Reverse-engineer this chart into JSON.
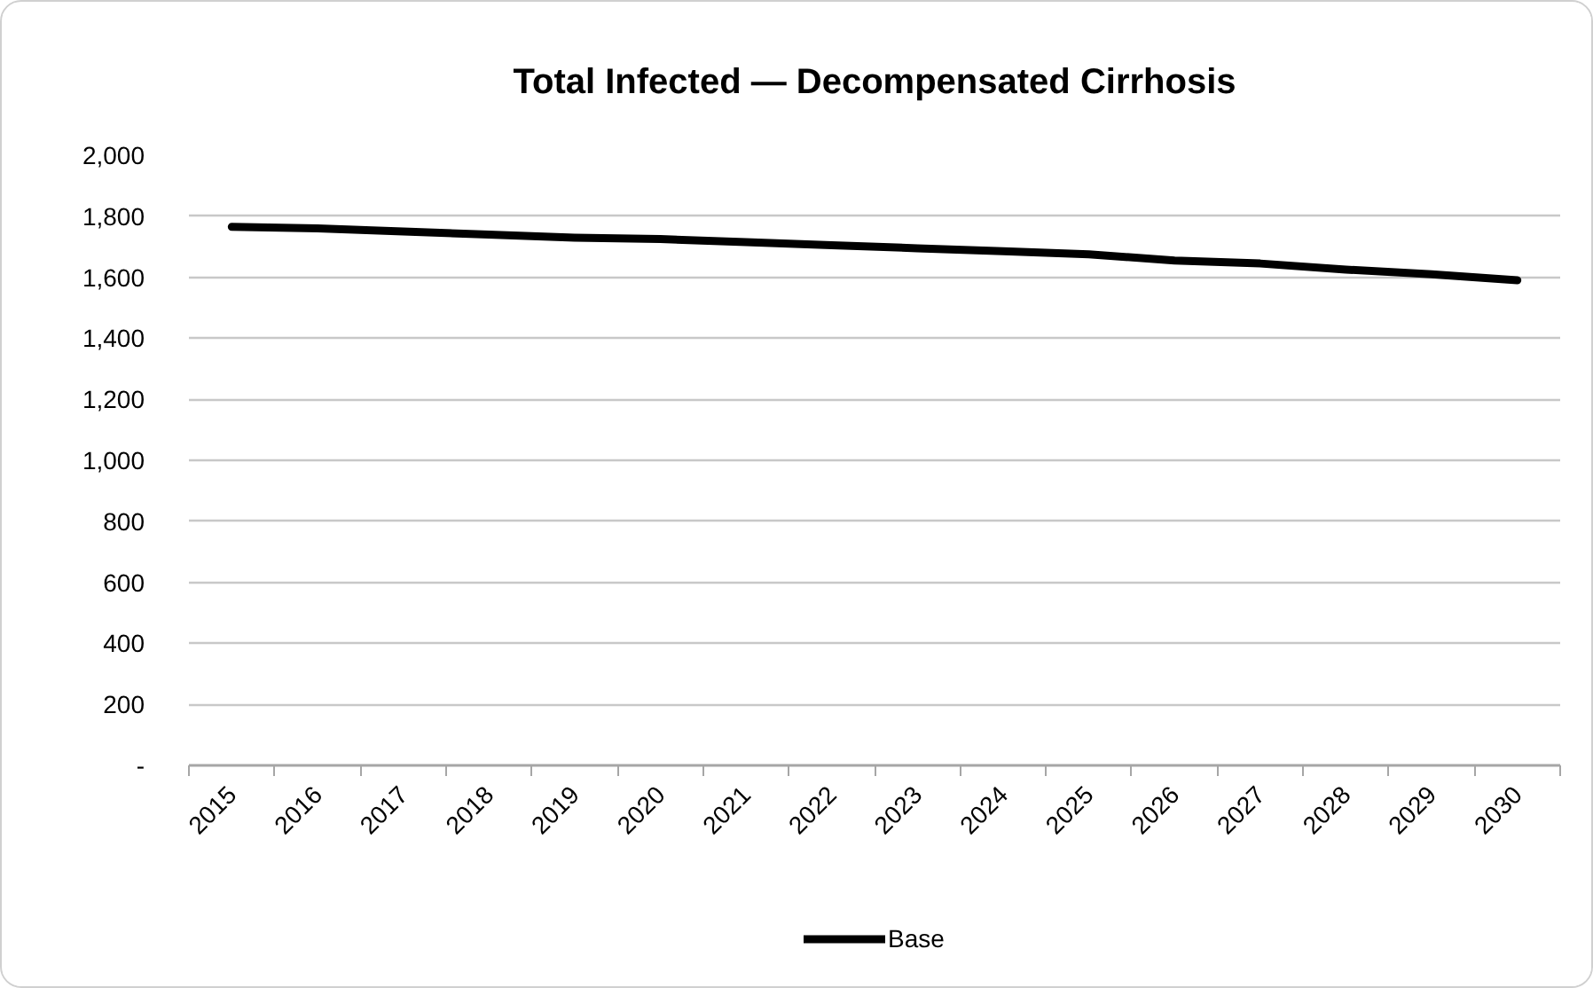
{
  "chart_data": {
    "type": "line",
    "title": "Total Infected — Decompensated Cirrhosis",
    "categories": [
      "2015",
      "2016",
      "2017",
      "2018",
      "2019",
      "2020",
      "2021",
      "2022",
      "2023",
      "2024",
      "2025",
      "2026",
      "2027",
      "2028",
      "2029",
      "2030"
    ],
    "series": [
      {
        "name": "Base",
        "color": "#000000",
        "values": [
          1765,
          1760,
          1750,
          1740,
          1730,
          1725,
          1715,
          1705,
          1695,
          1685,
          1675,
          1655,
          1645,
          1625,
          1610,
          1590
        ]
      }
    ],
    "ylim": [
      0,
      2000
    ],
    "yticks": [
      {
        "value": 0,
        "label": "-"
      },
      200,
      400,
      600,
      800,
      {
        "value": 1000,
        "label": "1,000"
      },
      {
        "value": 1200,
        "label": "1,200"
      },
      {
        "value": 1400,
        "label": "1,400"
      },
      {
        "value": 1600,
        "label": "1,600"
      },
      {
        "value": 1800,
        "label": "1,800"
      },
      {
        "value": 2000,
        "label": "2,000"
      }
    ],
    "grid": "y",
    "legend": "bottom",
    "line_style": "solid"
  }
}
